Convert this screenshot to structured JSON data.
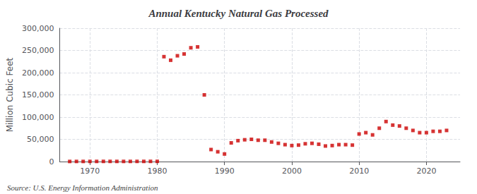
{
  "chart_data": {
    "type": "scatter",
    "title": "Annual Kentucky Natural Gas Processed",
    "ylabel": "Million Cubic Feet",
    "annotations": [
      "Source: U.S. Energy Information Administration"
    ],
    "x": [
      1967,
      1968,
      1969,
      1970,
      1971,
      1972,
      1973,
      1974,
      1975,
      1976,
      1977,
      1978,
      1979,
      1980,
      1981,
      1982,
      1983,
      1984,
      1985,
      1986,
      1987,
      1988,
      1989,
      1990,
      1991,
      1992,
      1993,
      1994,
      1995,
      1996,
      1997,
      1998,
      1999,
      2000,
      2001,
      2002,
      2003,
      2004,
      2005,
      2006,
      2007,
      2008,
      2009,
      2010,
      2011,
      2012,
      2013,
      2014,
      2015,
      2016,
      2017,
      2018,
      2019,
      2020,
      2021,
      2022,
      2023
    ],
    "values": [
      200,
      250,
      250,
      300,
      300,
      350,
      350,
      300,
      300,
      300,
      350,
      350,
      400,
      400,
      236000,
      228000,
      238000,
      242000,
      256000,
      258000,
      150000,
      27000,
      22000,
      17000,
      42000,
      47000,
      49000,
      50000,
      48000,
      48000,
      44000,
      41000,
      38000,
      36000,
      37000,
      40000,
      41000,
      39000,
      35000,
      36000,
      38000,
      38000,
      37000,
      62000,
      65000,
      60000,
      75000,
      90000,
      82000,
      80000,
      75000,
      70000,
      65000,
      65000,
      68000,
      68000,
      70000
    ],
    "color": "#cc0000",
    "marker": "square",
    "xlim": [
      1965.5,
      2025
    ],
    "xticks": [
      1970,
      1980,
      1990,
      2000,
      2010,
      2020
    ],
    "ylim": [
      0,
      300000
    ],
    "yticks": [
      0,
      {
        "value": 50000,
        "label": "50,000"
      },
      {
        "value": 100000,
        "label": "100,000"
      },
      {
        "value": 150000,
        "label": "150,000"
      },
      {
        "value": 200000,
        "label": "200,000"
      },
      {
        "value": 250000,
        "label": "250,000"
      },
      {
        "value": 300000,
        "label": "300,000"
      }
    ],
    "grid": true
  }
}
